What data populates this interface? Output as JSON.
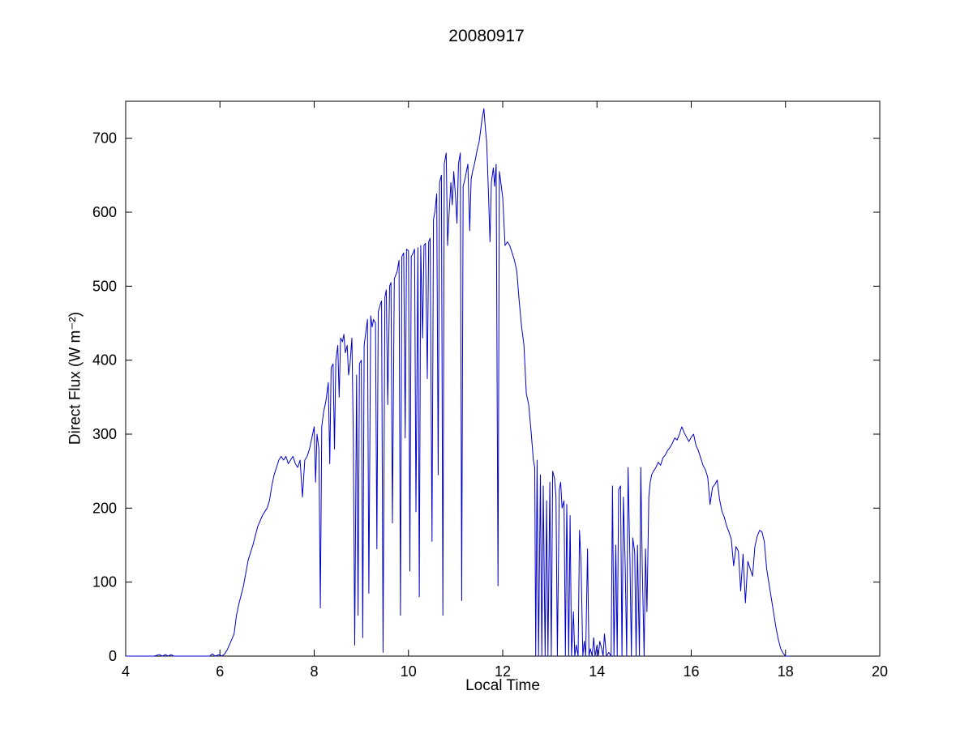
{
  "chart_data": {
    "type": "line",
    "title": "20080917",
    "xlabel": "Local Time",
    "ylabel": "Direct Flux (W m⁻²)",
    "xlim": [
      4,
      20
    ],
    "ylim": [
      0,
      750
    ],
    "xticks": [
      4,
      6,
      8,
      10,
      12,
      14,
      16,
      18,
      20
    ],
    "yticks": [
      0,
      100,
      200,
      300,
      400,
      500,
      600,
      700
    ],
    "grid": false,
    "legend": "none",
    "line_color": "#0000CC",
    "axis_color": "#000000",
    "background_color": "#FFFFFF",
    "points": [
      [
        4.0,
        0
      ],
      [
        4.6,
        0
      ],
      [
        4.72,
        2
      ],
      [
        4.78,
        0
      ],
      [
        4.84,
        2
      ],
      [
        4.9,
        0
      ],
      [
        4.96,
        2
      ],
      [
        5.02,
        0
      ],
      [
        5.78,
        0
      ],
      [
        5.84,
        3
      ],
      [
        5.9,
        0
      ],
      [
        5.98,
        2
      ],
      [
        6.04,
        0
      ],
      [
        6.1,
        3
      ],
      [
        6.15,
        8
      ],
      [
        6.2,
        15
      ],
      [
        6.3,
        30
      ],
      [
        6.35,
        55
      ],
      [
        6.4,
        70
      ],
      [
        6.5,
        95
      ],
      [
        6.6,
        130
      ],
      [
        6.7,
        150
      ],
      [
        6.8,
        175
      ],
      [
        6.9,
        190
      ],
      [
        7.0,
        200
      ],
      [
        7.05,
        210
      ],
      [
        7.1,
        230
      ],
      [
        7.15,
        245
      ],
      [
        7.2,
        255
      ],
      [
        7.25,
        265
      ],
      [
        7.3,
        270
      ],
      [
        7.35,
        265
      ],
      [
        7.4,
        270
      ],
      [
        7.45,
        260
      ],
      [
        7.5,
        265
      ],
      [
        7.55,
        270
      ],
      [
        7.6,
        260
      ],
      [
        7.65,
        255
      ],
      [
        7.7,
        265
      ],
      [
        7.75,
        215
      ],
      [
        7.8,
        265
      ],
      [
        7.85,
        270
      ],
      [
        7.9,
        280
      ],
      [
        7.95,
        295
      ],
      [
        8.0,
        310
      ],
      [
        8.03,
        235
      ],
      [
        8.06,
        300
      ],
      [
        8.1,
        280
      ],
      [
        8.13,
        65
      ],
      [
        8.16,
        310
      ],
      [
        8.2,
        330
      ],
      [
        8.25,
        345
      ],
      [
        8.3,
        370
      ],
      [
        8.33,
        260
      ],
      [
        8.36,
        390
      ],
      [
        8.4,
        395
      ],
      [
        8.43,
        280
      ],
      [
        8.46,
        400
      ],
      [
        8.5,
        420
      ],
      [
        8.53,
        350
      ],
      [
        8.56,
        430
      ],
      [
        8.6,
        425
      ],
      [
        8.63,
        435
      ],
      [
        8.66,
        410
      ],
      [
        8.7,
        420
      ],
      [
        8.73,
        380
      ],
      [
        8.76,
        395
      ],
      [
        8.8,
        430
      ],
      [
        8.83,
        300
      ],
      [
        8.86,
        15
      ],
      [
        8.9,
        380
      ],
      [
        8.93,
        55
      ],
      [
        8.96,
        395
      ],
      [
        9.0,
        400
      ],
      [
        9.03,
        25
      ],
      [
        9.06,
        420
      ],
      [
        9.1,
        440
      ],
      [
        9.13,
        455
      ],
      [
        9.16,
        85
      ],
      [
        9.2,
        460
      ],
      [
        9.23,
        445
      ],
      [
        9.26,
        455
      ],
      [
        9.3,
        450
      ],
      [
        9.33,
        145
      ],
      [
        9.36,
        465
      ],
      [
        9.4,
        475
      ],
      [
        9.43,
        480
      ],
      [
        9.46,
        5
      ],
      [
        9.5,
        485
      ],
      [
        9.53,
        495
      ],
      [
        9.56,
        340
      ],
      [
        9.6,
        500
      ],
      [
        9.63,
        505
      ],
      [
        9.66,
        180
      ],
      [
        9.7,
        510
      ],
      [
        9.73,
        515
      ],
      [
        9.76,
        520
      ],
      [
        9.8,
        535
      ],
      [
        9.83,
        55
      ],
      [
        9.86,
        540
      ],
      [
        9.9,
        545
      ],
      [
        9.93,
        295
      ],
      [
        9.96,
        550
      ],
      [
        10.0,
        548
      ],
      [
        10.03,
        115
      ],
      [
        10.06,
        540
      ],
      [
        10.1,
        545
      ],
      [
        10.13,
        550
      ],
      [
        10.16,
        195
      ],
      [
        10.2,
        552
      ],
      [
        10.23,
        80
      ],
      [
        10.26,
        555
      ],
      [
        10.3,
        430
      ],
      [
        10.33,
        555
      ],
      [
        10.36,
        558
      ],
      [
        10.4,
        375
      ],
      [
        10.43,
        560
      ],
      [
        10.46,
        565
      ],
      [
        10.5,
        155
      ],
      [
        10.53,
        590
      ],
      [
        10.56,
        600
      ],
      [
        10.6,
        625
      ],
      [
        10.63,
        245
      ],
      [
        10.66,
        640
      ],
      [
        10.7,
        650
      ],
      [
        10.73,
        55
      ],
      [
        10.76,
        665
      ],
      [
        10.8,
        680
      ],
      [
        10.83,
        555
      ],
      [
        10.86,
        595
      ],
      [
        10.9,
        640
      ],
      [
        10.93,
        610
      ],
      [
        10.96,
        655
      ],
      [
        11.0,
        620
      ],
      [
        11.03,
        585
      ],
      [
        11.06,
        665
      ],
      [
        11.1,
        680
      ],
      [
        11.13,
        75
      ],
      [
        11.16,
        635
      ],
      [
        11.2,
        645
      ],
      [
        11.23,
        655
      ],
      [
        11.26,
        665
      ],
      [
        11.3,
        575
      ],
      [
        11.33,
        645
      ],
      [
        11.36,
        655
      ],
      [
        11.4,
        665
      ],
      [
        11.43,
        675
      ],
      [
        11.46,
        685
      ],
      [
        11.5,
        695
      ],
      [
        11.53,
        710
      ],
      [
        11.56,
        725
      ],
      [
        11.6,
        740
      ],
      [
        11.63,
        715
      ],
      [
        11.66,
        695
      ],
      [
        11.7,
        620
      ],
      [
        11.73,
        560
      ],
      [
        11.76,
        640
      ],
      [
        11.8,
        660
      ],
      [
        11.83,
        635
      ],
      [
        11.86,
        665
      ],
      [
        11.9,
        95
      ],
      [
        11.93,
        655
      ],
      [
        11.96,
        640
      ],
      [
        12.0,
        620
      ],
      [
        12.05,
        555
      ],
      [
        12.1,
        560
      ],
      [
        12.15,
        555
      ],
      [
        12.2,
        545
      ],
      [
        12.25,
        535
      ],
      [
        12.3,
        520
      ],
      [
        12.35,
        480
      ],
      [
        12.4,
        445
      ],
      [
        12.45,
        420
      ],
      [
        12.5,
        355
      ],
      [
        12.55,
        340
      ],
      [
        12.6,
        305
      ],
      [
        12.65,
        265
      ],
      [
        12.68,
        255
      ],
      [
        12.7,
        0
      ],
      [
        12.73,
        265
      ],
      [
        12.76,
        0
      ],
      [
        12.8,
        245
      ],
      [
        12.83,
        0
      ],
      [
        12.86,
        230
      ],
      [
        12.9,
        0
      ],
      [
        12.93,
        210
      ],
      [
        12.96,
        0
      ],
      [
        13.0,
        235
      ],
      [
        13.03,
        0
      ],
      [
        13.06,
        250
      ],
      [
        13.1,
        240
      ],
      [
        13.13,
        215
      ],
      [
        13.16,
        0
      ],
      [
        13.2,
        225
      ],
      [
        13.23,
        235
      ],
      [
        13.26,
        200
      ],
      [
        13.3,
        210
      ],
      [
        13.33,
        0
      ],
      [
        13.36,
        205
      ],
      [
        13.4,
        0
      ],
      [
        13.43,
        190
      ],
      [
        13.46,
        0
      ],
      [
        13.5,
        60
      ],
      [
        13.53,
        0
      ],
      [
        13.56,
        15
      ],
      [
        13.6,
        0
      ],
      [
        13.63,
        170
      ],
      [
        13.66,
        130
      ],
      [
        13.7,
        0
      ],
      [
        13.73,
        20
      ],
      [
        13.76,
        0
      ],
      [
        13.8,
        145
      ],
      [
        13.83,
        0
      ],
      [
        13.86,
        10
      ],
      [
        13.9,
        0
      ],
      [
        13.93,
        25
      ],
      [
        13.96,
        0
      ],
      [
        14.0,
        15
      ],
      [
        14.03,
        0
      ],
      [
        14.06,
        20
      ],
      [
        14.1,
        10
      ],
      [
        14.13,
        0
      ],
      [
        14.16,
        30
      ],
      [
        14.2,
        0
      ],
      [
        14.25,
        5
      ],
      [
        14.3,
        0
      ],
      [
        14.33,
        230
      ],
      [
        14.36,
        0
      ],
      [
        14.4,
        150
      ],
      [
        14.43,
        0
      ],
      [
        14.46,
        225
      ],
      [
        14.5,
        230
      ],
      [
        14.53,
        0
      ],
      [
        14.56,
        215
      ],
      [
        14.6,
        120
      ],
      [
        14.63,
        0
      ],
      [
        14.66,
        255
      ],
      [
        14.7,
        130
      ],
      [
        14.73,
        0
      ],
      [
        14.76,
        160
      ],
      [
        14.8,
        140
      ],
      [
        14.83,
        0
      ],
      [
        14.86,
        150
      ],
      [
        14.9,
        0
      ],
      [
        14.93,
        255
      ],
      [
        14.96,
        120
      ],
      [
        15.0,
        0
      ],
      [
        15.03,
        145
      ],
      [
        15.06,
        60
      ],
      [
        15.1,
        215
      ],
      [
        15.13,
        235
      ],
      [
        15.16,
        245
      ],
      [
        15.2,
        250
      ],
      [
        15.25,
        255
      ],
      [
        15.3,
        262
      ],
      [
        15.35,
        258
      ],
      [
        15.4,
        268
      ],
      [
        15.45,
        272
      ],
      [
        15.5,
        278
      ],
      [
        15.55,
        282
      ],
      [
        15.6,
        288
      ],
      [
        15.65,
        295
      ],
      [
        15.7,
        292
      ],
      [
        15.75,
        300
      ],
      [
        15.8,
        310
      ],
      [
        15.85,
        302
      ],
      [
        15.9,
        296
      ],
      [
        15.95,
        290
      ],
      [
        16.0,
        296
      ],
      [
        16.05,
        300
      ],
      [
        16.1,
        285
      ],
      [
        16.15,
        278
      ],
      [
        16.2,
        268
      ],
      [
        16.25,
        258
      ],
      [
        16.3,
        252
      ],
      [
        16.35,
        242
      ],
      [
        16.4,
        205
      ],
      [
        16.45,
        228
      ],
      [
        16.5,
        232
      ],
      [
        16.55,
        238
      ],
      [
        16.6,
        212
      ],
      [
        16.65,
        196
      ],
      [
        16.7,
        188
      ],
      [
        16.75,
        176
      ],
      [
        16.8,
        168
      ],
      [
        16.85,
        158
      ],
      [
        16.9,
        122
      ],
      [
        16.95,
        148
      ],
      [
        17.0,
        142
      ],
      [
        17.05,
        88
      ],
      [
        17.1,
        138
      ],
      [
        17.15,
        72
      ],
      [
        17.2,
        128
      ],
      [
        17.25,
        118
      ],
      [
        17.3,
        108
      ],
      [
        17.35,
        148
      ],
      [
        17.4,
        162
      ],
      [
        17.45,
        170
      ],
      [
        17.5,
        168
      ],
      [
        17.55,
        155
      ],
      [
        17.6,
        118
      ],
      [
        17.65,
        98
      ],
      [
        17.7,
        78
      ],
      [
        17.75,
        58
      ],
      [
        17.8,
        38
      ],
      [
        17.85,
        22
      ],
      [
        17.9,
        10
      ],
      [
        17.95,
        4
      ],
      [
        18.0,
        0
      ],
      [
        18.08,
        0
      ]
    ]
  }
}
